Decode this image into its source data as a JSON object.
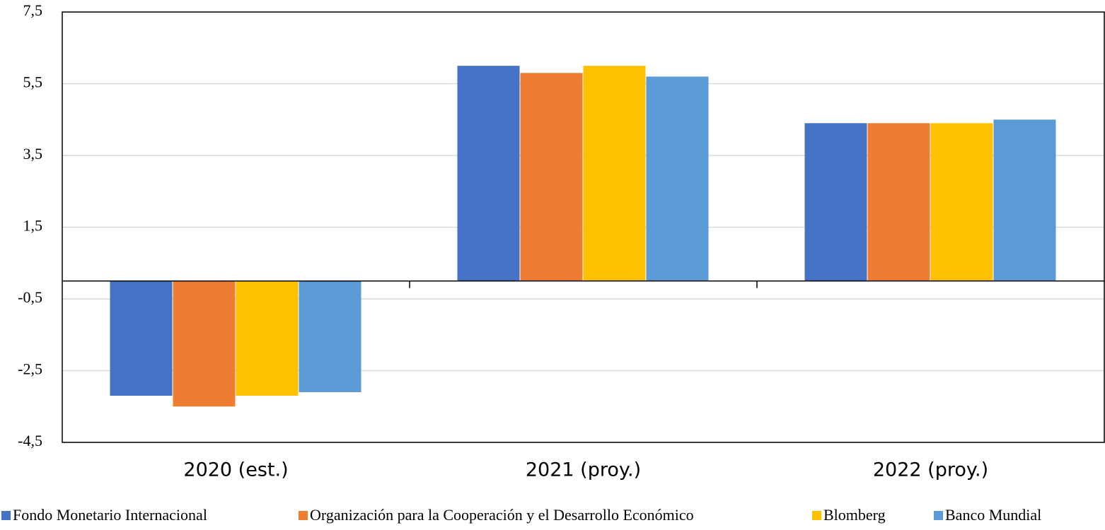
{
  "chart_data": {
    "type": "bar",
    "categories": [
      "2020 (est.)",
      "2021 (proy.)",
      "2022 (proy.)"
    ],
    "series": [
      {
        "name": "Fondo Monetario Internacional",
        "color": "#4472c4",
        "values": [
          -3.2,
          6.0,
          4.4
        ]
      },
      {
        "name": "Organización para la Cooperación y el Desarrollo Económico",
        "color": "#ed7d31",
        "values": [
          -3.5,
          5.8,
          4.4
        ]
      },
      {
        "name": "Blomberg",
        "color": "#ffc000",
        "values": [
          -3.2,
          6.0,
          4.4
        ]
      },
      {
        "name": "Banco Mundial",
        "color": "#5b9bd5",
        "values": [
          -3.1,
          5.7,
          4.5
        ]
      }
    ],
    "ylim": [
      -4.5,
      7.5
    ],
    "yticks": [
      {
        "value": -4.5,
        "label": "-4,5"
      },
      {
        "value": -2.5,
        "label": "-2,5"
      },
      {
        "value": -0.5,
        "label": "-0,5"
      },
      {
        "value": 1.5,
        "label": "1,5"
      },
      {
        "value": 3.5,
        "label": "3,5"
      },
      {
        "value": 5.5,
        "label": "5,5"
      },
      {
        "value": 7.5,
        "label": "7,5"
      }
    ],
    "grid": true
  }
}
